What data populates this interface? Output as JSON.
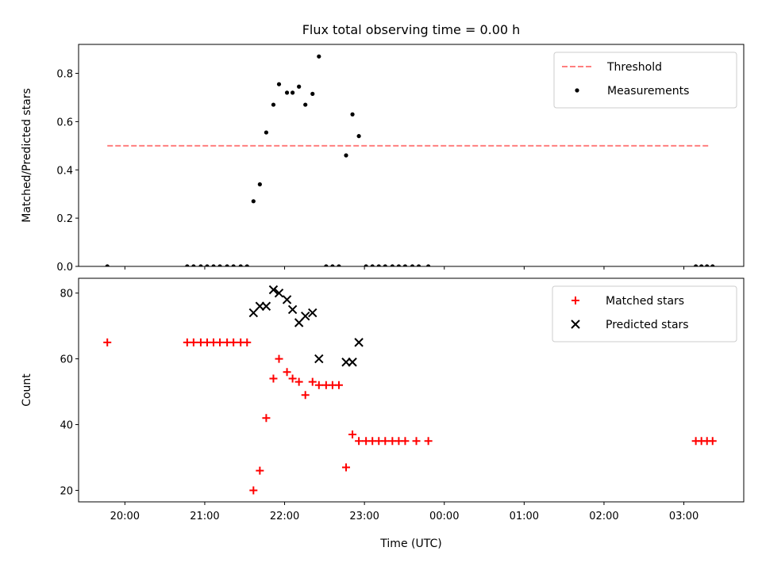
{
  "figure": {
    "title": "Flux total observing time = 0.00 h",
    "xlabel": "Time (UTC)",
    "time_ticks": [
      "20:00",
      "21:00",
      "22:00",
      "23:00",
      "00:00",
      "01:00",
      "02:00",
      "03:00"
    ]
  },
  "chart_data": [
    {
      "type": "scatter",
      "x_unit": "hours after 20:00 UTC",
      "ylabel": "Matched/Predicted stars",
      "ylim": [
        0,
        0.92
      ],
      "xlim": [
        -0.58,
        7.75
      ],
      "yticks": [
        "0.0",
        "0.2",
        "0.4",
        "0.6",
        "0.8"
      ],
      "ytick_values": [
        0,
        0.2,
        0.4,
        0.6,
        0.8
      ],
      "legend_position": "top-right",
      "threshold": {
        "name": "Threshold",
        "value": 0.5,
        "x_range": [
          -0.22,
          7.32
        ],
        "color": "#ff7f7f"
      },
      "series": [
        {
          "name": "Measurements",
          "color": "#000000",
          "x": [
            -0.22,
            0.78,
            0.86,
            0.95,
            1.03,
            1.11,
            1.19,
            1.28,
            1.36,
            1.45,
            1.53,
            1.61,
            1.69,
            1.77,
            1.86,
            1.93,
            2.03,
            2.1,
            2.18,
            2.26,
            2.35,
            2.43,
            2.52,
            2.6,
            2.68,
            2.77,
            2.85,
            2.93,
            3.02,
            3.1,
            3.18,
            3.26,
            3.35,
            3.43,
            3.51,
            3.6,
            3.68,
            3.8,
            7.15,
            7.22,
            7.29,
            7.36
          ],
          "y": [
            0,
            0,
            0,
            0,
            0,
            0,
            0,
            0,
            0,
            0,
            0,
            0.27,
            0.34,
            0.555,
            0.67,
            0.755,
            0.72,
            0.72,
            0.745,
            0.67,
            0.715,
            0.87,
            0,
            0,
            0,
            0.46,
            0.63,
            0.54,
            0,
            0,
            0,
            0,
            0,
            0,
            0,
            0,
            0,
            0,
            0,
            0,
            0,
            0
          ]
        }
      ]
    },
    {
      "type": "scatter",
      "x_unit": "hours after 20:00 UTC",
      "ylabel": "Count",
      "ylim": [
        16.5,
        84.5
      ],
      "xlim": [
        -0.58,
        7.75
      ],
      "yticks": [
        "20",
        "40",
        "60",
        "80"
      ],
      "ytick_values": [
        20,
        40,
        60,
        80
      ],
      "legend_position": "top-right",
      "series": [
        {
          "name": "Matched stars",
          "color": "#ff0000",
          "x": [
            -0.22,
            0.78,
            0.86,
            0.95,
            1.03,
            1.11,
            1.19,
            1.28,
            1.36,
            1.45,
            1.53,
            1.61,
            1.69,
            1.77,
            1.86,
            1.93,
            2.03,
            2.1,
            2.18,
            2.26,
            2.35,
            2.43,
            2.52,
            2.6,
            2.68,
            2.77,
            2.85,
            2.93,
            3.02,
            3.1,
            3.18,
            3.26,
            3.35,
            3.43,
            3.51,
            3.65,
            3.8,
            7.15,
            7.22,
            7.29,
            7.36
          ],
          "y": [
            65,
            65,
            65,
            65,
            65,
            65,
            65,
            65,
            65,
            65,
            65,
            20,
            26,
            42,
            54,
            60,
            56,
            54,
            53,
            49,
            53,
            52,
            52,
            52,
            52,
            27,
            37,
            35,
            35,
            35,
            35,
            35,
            35,
            35,
            35,
            35,
            35,
            35,
            35,
            35,
            35
          ]
        },
        {
          "name": "Predicted stars",
          "color": "#000000",
          "x": [
            1.61,
            1.69,
            1.77,
            1.86,
            1.93,
            2.03,
            2.1,
            2.18,
            2.26,
            2.35,
            2.43,
            2.77,
            2.85,
            2.93
          ],
          "y": [
            74,
            76,
            76,
            81,
            80,
            78,
            75,
            71,
            73,
            74,
            60,
            59,
            59,
            65
          ]
        }
      ]
    }
  ]
}
